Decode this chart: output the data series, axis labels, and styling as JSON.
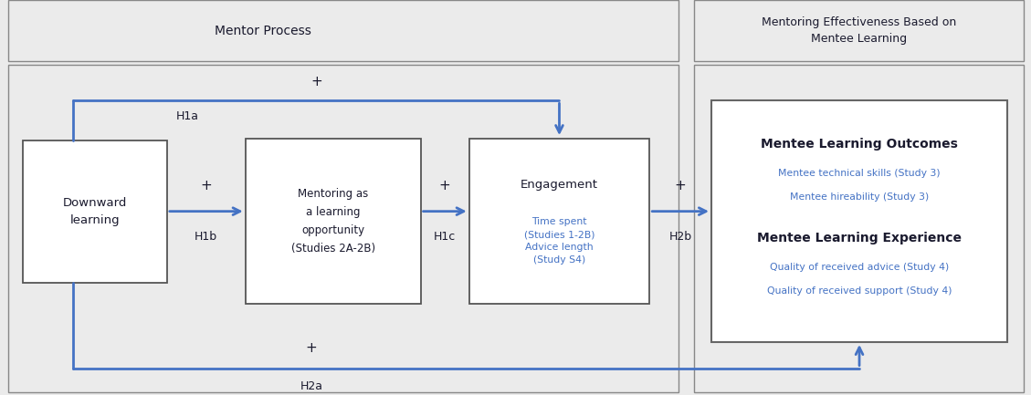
{
  "bg_color": "#ebebeb",
  "white": "#ffffff",
  "arrow_color": "#4472C4",
  "dark_text": "#1a1a2e",
  "blue_text": "#4472C4",
  "mentor_process_label": "Mentor Process",
  "mentoring_effectiveness_label": "Mentoring Effectiveness Based on\nMentee Learning",
  "downward_label": "Downward\nlearning",
  "mentoring_label": "Mentoring as\na learning\nopportunity\n(Studies 2A-2B)",
  "engagement_title": "Engagement",
  "engagement_sub": "Time spent\n(Studies 1-2B)\nAdvice length\n(Study S4)",
  "outcomes_title": "Mentee Learning Outcomes",
  "outcomes_sub1": "Mentee technical skills (Study 3)",
  "outcomes_sub2": "Mentee hireability (Study 3)",
  "experience_title": "Mentee Learning Experience",
  "experience_sub1": "Quality of received advice (Study 4)",
  "experience_sub2": "Quality of received support (Study 4)",
  "H1a_label": "H1a",
  "H1b_label": "H1b",
  "H1c_label": "H1c",
  "H2a_label": "H2a",
  "H2b_label": "H2b",
  "fig_width": 11.29,
  "fig_height": 4.33,
  "dpi": 100
}
